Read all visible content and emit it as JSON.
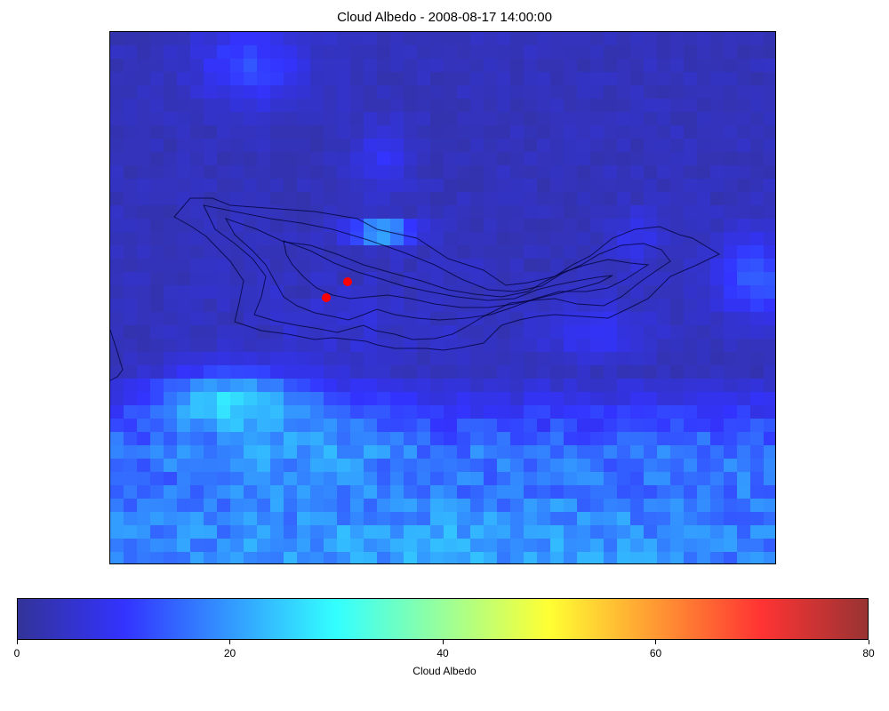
{
  "chart_data": {
    "type": "heatmap",
    "title": "Cloud Albedo - 2008-08-17 14:00:00",
    "colorbar": {
      "label": "Cloud Albedo",
      "range": [
        0,
        80
      ],
      "ticks": [
        0,
        20,
        40,
        60,
        80
      ],
      "colormap": "jet",
      "alpha": 0.8
    },
    "grid": {
      "rows": 40,
      "cols": 50,
      "value_range_shown": [
        0,
        30
      ],
      "regions": [
        {
          "label": "background",
          "value": 3
        },
        {
          "label": "northern cloud cell",
          "value": 12
        },
        {
          "label": "bright pixel north of contours",
          "value": 28
        },
        {
          "label": "southern cloud band",
          "value": 17
        },
        {
          "label": "southern band maximum",
          "value": 27
        },
        {
          "label": "eastern edge cloud",
          "value": 14
        }
      ]
    },
    "markers": [
      {
        "label": "site 1",
        "color": "#ff0000"
      },
      {
        "label": "site 2",
        "color": "#ff0000"
      }
    ],
    "contours": {
      "levels": 4,
      "color": "#000033"
    },
    "grid_lines": false,
    "legend": "none"
  }
}
